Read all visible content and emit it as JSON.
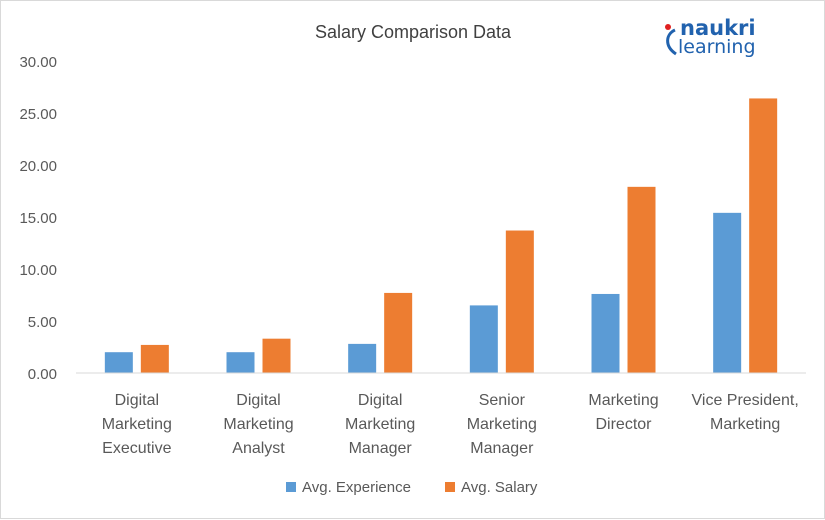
{
  "chart_data": {
    "type": "bar",
    "title": "Salary Comparison Data",
    "categories": [
      [
        "Digital",
        "Marketing",
        "Executive"
      ],
      [
        "Digital",
        "Marketing",
        "Analyst"
      ],
      [
        "Digital",
        "Marketing",
        "Manager"
      ],
      [
        "Senior",
        "Marketing",
        "Manager"
      ],
      [
        "Marketing",
        "Director"
      ],
      [
        "Vice President,",
        "Marketing"
      ]
    ],
    "series": [
      {
        "name": "Avg. Experience",
        "color": "#5b9bd5",
        "values": [
          2.0,
          2.0,
          2.8,
          6.5,
          7.6,
          15.4
        ]
      },
      {
        "name": "Avg. Salary",
        "color": "#ed7d31",
        "values": [
          2.7,
          3.3,
          7.7,
          13.7,
          17.9,
          26.4
        ]
      }
    ],
    "ylim": [
      0,
      30
    ],
    "yticks": [
      "0.00",
      "5.00",
      "10.00",
      "15.00",
      "20.00",
      "25.00",
      "30.00"
    ],
    "grid": false,
    "legend": "bottom"
  },
  "logo": {
    "line1": "naukri",
    "line2": "learning"
  }
}
